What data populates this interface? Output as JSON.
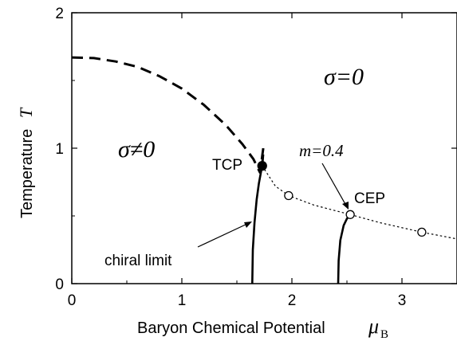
{
  "chart_data": {
    "type": "line",
    "xlabel": "Baryon Chemical Potential",
    "xlabel_symbol": "μ",
    "xlabel_subscript": "B",
    "ylabel": "Temperature",
    "ylabel_symbol": "T",
    "xlim": [
      0,
      3.5
    ],
    "ylim": [
      0,
      2
    ],
    "xticks": [
      "0",
      "1",
      "2",
      "3"
    ],
    "xtick_values": [
      0,
      1,
      2,
      3
    ],
    "yticks": [
      "0",
      "1",
      "2"
    ],
    "ytick_values": [
      0,
      1,
      2
    ],
    "grid": false,
    "series": [
      {
        "style": "dashed",
        "x": [
          0.0,
          0.2,
          0.4,
          0.6,
          0.8,
          1.0,
          1.2,
          1.4,
          1.55,
          1.65,
          1.71,
          1.74,
          1.74,
          1.73
        ],
        "y": [
          1.67,
          1.665,
          1.64,
          1.6,
          1.53,
          1.44,
          1.32,
          1.17,
          1.03,
          0.92,
          0.82,
          1.0,
          0.97,
          0.87
        ]
      },
      {
        "style": "solid",
        "x": [
          1.64,
          1.645,
          1.66,
          1.68,
          1.7,
          1.72,
          1.73
        ],
        "y": [
          0.0,
          0.25,
          0.45,
          0.62,
          0.74,
          0.83,
          0.87
        ]
      },
      {
        "style": "solid",
        "x": [
          2.42,
          2.425,
          2.44,
          2.47,
          2.5,
          2.53
        ],
        "y": [
          0.0,
          0.17,
          0.32,
          0.43,
          0.48,
          0.51
        ]
      },
      {
        "style": "dotted",
        "x": [
          1.73,
          1.85,
          1.97,
          2.2,
          2.53,
          2.8,
          3.18,
          3.5
        ],
        "y": [
          0.87,
          0.72,
          0.65,
          0.58,
          0.51,
          0.45,
          0.38,
          0.33
        ]
      }
    ],
    "points": [
      {
        "label": "TCP",
        "x": 1.73,
        "y": 0.87,
        "filled": true
      },
      {
        "label": "",
        "x": 1.97,
        "y": 0.65,
        "filled": false
      },
      {
        "label": "CEP",
        "x": 2.53,
        "y": 0.51,
        "filled": false
      },
      {
        "label": "",
        "x": 3.18,
        "y": 0.38,
        "filled": false
      }
    ],
    "annotations": {
      "sigma_nonzero": "σ≠0",
      "sigma_zero": "σ=0",
      "tcp": "TCP",
      "cep": "CEP",
      "chiral_limit": "chiral limit",
      "mass_label": "m=0.4"
    },
    "colors": {
      "line": "#000000",
      "background": "#ffffff"
    }
  }
}
